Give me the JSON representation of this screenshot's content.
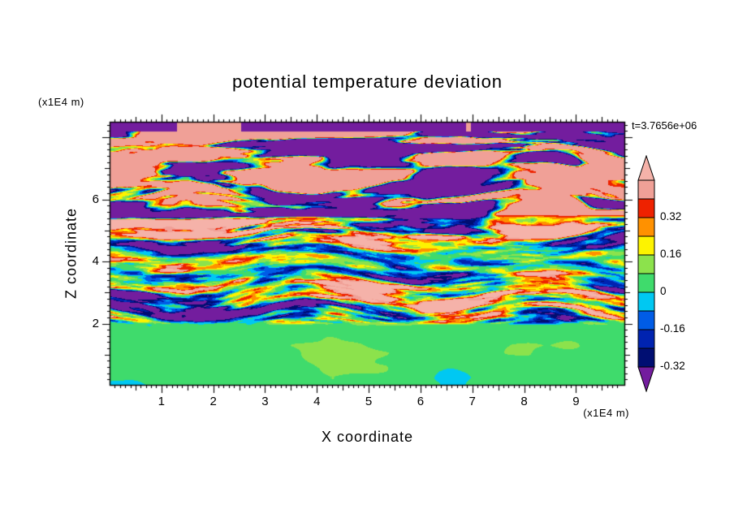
{
  "title": "potential temperature deviation",
  "time_label": "t=3.7656e+06",
  "axes": {
    "x": {
      "label": "X coordinate",
      "unit": "(x1E4 m)"
    },
    "z": {
      "label": "Z coordinate",
      "unit": "(x1E4 m)"
    }
  },
  "chart_data": {
    "type": "heatmap",
    "title": "potential temperature deviation",
    "xlabel": "X coordinate",
    "x_unit": "(x1E4 m)",
    "ylabel": "Z coordinate",
    "y_unit": "(x1E4 m)",
    "time": "t=3.7656e+06",
    "x_range": [
      0,
      9.95
    ],
    "z_range": [
      0,
      8.5
    ],
    "x_ticks": [
      1,
      2,
      3,
      4,
      5,
      6,
      7,
      8,
      9
    ],
    "z_ticks": [
      2,
      4,
      6
    ],
    "x_minor_step": 0.1,
    "z_minor_step": 0.2,
    "levels": [
      0.48,
      0.4,
      0.32,
      0.24,
      0.16,
      0.08,
      0,
      -0.08,
      -0.16,
      -0.24,
      -0.32
    ],
    "palette": [
      "#f5b2a9",
      "#f0a097",
      "#ee2200",
      "#ff9100",
      "#fdf300",
      "#8ce24c",
      "#3fdb6c",
      "#00c8f2",
      "#005ce6",
      "#0023b0",
      "#000e72",
      "#731d9e"
    ],
    "colorbar_labels": [
      "0.32",
      "0.16",
      "0",
      "-0.16",
      "-0.32"
    ],
    "legend_position": "right",
    "grid": false,
    "regions": [
      {
        "z": [
          5.5,
          8.5
        ],
        "description": "salmon background with wavy horizontal purple streak bands, thin red/orange/yellow fringes at band edges, mostly-purple band along the very top edge"
      },
      {
        "z": [
          2.0,
          5.5
        ],
        "description": "green background with dense horizontal turbulent streaks of yellow/orange/red (positive) and cyan/blue/navy (negative); strongest near z=2.5 and z=5"
      },
      {
        "z": [
          0,
          2.0
        ],
        "description": "smooth green layer with large soft lighter-green blobs and an occasional small cyan dip near z=2"
      }
    ],
    "field_model": {
      "seed": 77331,
      "warp_amp": 0.35,
      "warp_fx": 0.45,
      "warp_fz": 0.8,
      "mid": {
        "base": 0.03,
        "fx": 0.6,
        "fz": 3.3,
        "fx2": 1.6,
        "fz2": 6.4,
        "amp0": 0.38,
        "g1": [
          2.55,
          0.85,
          0.38
        ],
        "g2": [
          5.0,
          0.5,
          0.45
        ]
      },
      "top": {
        "base": 0.45,
        "fx": 0.6,
        "fz": 2.7,
        "slope": 2.2,
        "offset": 0.12,
        "border_z": 8.18,
        "border_gap": 0.45
      },
      "bottom": {
        "base": 0.05,
        "amp": 0.05,
        "fx": 0.45,
        "fz": 0.9
      },
      "blend": {
        "bot": [
          1.9,
          2.15
        ],
        "top": [
          5.3,
          5.55
        ]
      }
    }
  }
}
